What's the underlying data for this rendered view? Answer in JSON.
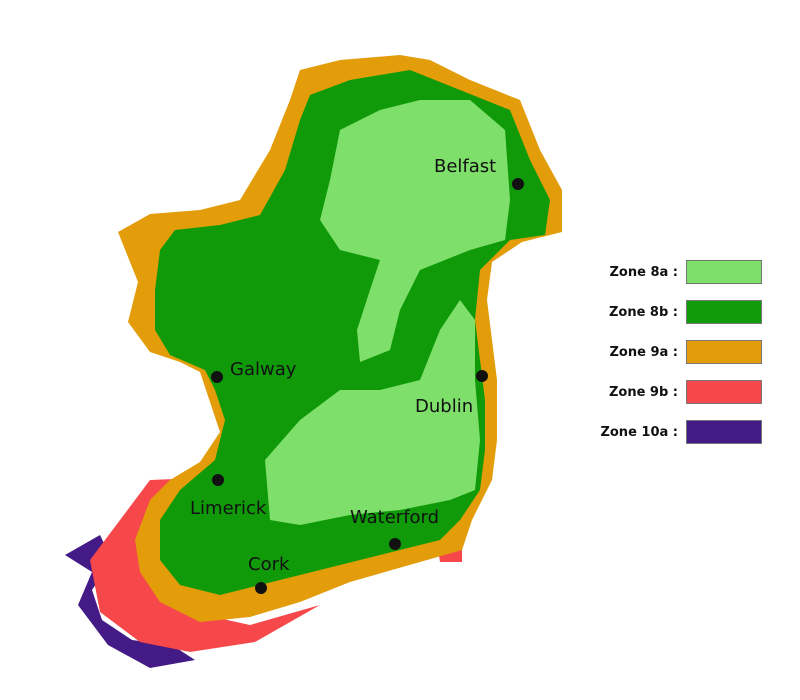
{
  "zones": [
    {
      "label": "Zone 8a :",
      "color": "#7ee06a"
    },
    {
      "label": "Zone 8b :",
      "color": "#109a0a"
    },
    {
      "label": "Zone 9a :",
      "color": "#e39d0a"
    },
    {
      "label": "Zone 9b :",
      "color": "#f6474a"
    },
    {
      "label": "Zone 10a :",
      "color": "#441a86"
    }
  ],
  "cities": {
    "belfast": "Belfast",
    "galway": "Galway",
    "dublin": "Dublin",
    "limerick": "Limerick",
    "waterford": "Waterford",
    "cork": "Cork"
  }
}
